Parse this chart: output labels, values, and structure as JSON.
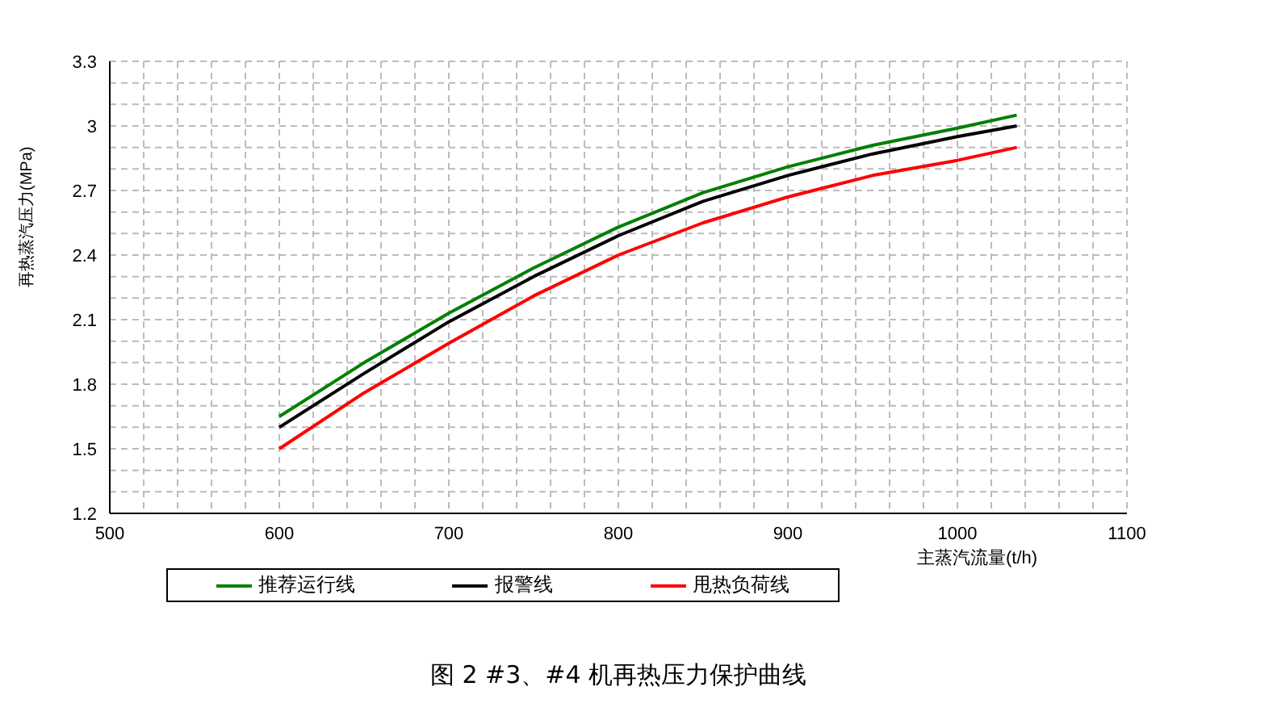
{
  "chart_data": {
    "type": "line",
    "title": "图 2   #3、#4 机再热压力保护曲线",
    "xlabel": "主蒸汽流量(t/h)",
    "ylabel": "再热蒸汽压力(MPa)",
    "x": [
      600,
      650,
      700,
      750,
      800,
      850,
      900,
      950,
      1000,
      1035
    ],
    "series": [
      {
        "name": "推荐运行线",
        "color": "#008000",
        "values": [
          1.65,
          1.9,
          2.13,
          2.34,
          2.53,
          2.69,
          2.81,
          2.91,
          2.99,
          3.05
        ]
      },
      {
        "name": "报警线",
        "color": "#000000",
        "values": [
          1.6,
          1.85,
          2.09,
          2.3,
          2.49,
          2.65,
          2.77,
          2.87,
          2.95,
          3.0
        ]
      },
      {
        "name": "甩热负荷线",
        "color": "#ff0000",
        "values": [
          1.5,
          1.76,
          1.99,
          2.21,
          2.4,
          2.55,
          2.67,
          2.77,
          2.84,
          2.9
        ]
      }
    ],
    "xlim": [
      500,
      1100
    ],
    "xticks": [
      500,
      {
        "value": 520,
        "label": null
      },
      {
        "value": 540,
        "label": null
      },
      {
        "value": 560,
        "label": null
      },
      {
        "value": 580,
        "label": null
      },
      600,
      {
        "value": 620,
        "label": null
      },
      {
        "value": 640,
        "label": null
      },
      {
        "value": 660,
        "label": null
      },
      {
        "value": 680,
        "label": null
      },
      700,
      {
        "value": 720,
        "label": null
      },
      {
        "value": 740,
        "label": null
      },
      {
        "value": 760,
        "label": null
      },
      {
        "value": 780,
        "label": null
      },
      800,
      {
        "value": 820,
        "label": null
      },
      {
        "value": 840,
        "label": null
      },
      {
        "value": 860,
        "label": null
      },
      {
        "value": 880,
        "label": null
      },
      900,
      {
        "value": 920,
        "label": null
      },
      {
        "value": 940,
        "label": null
      },
      {
        "value": 960,
        "label": null
      },
      {
        "value": 980,
        "label": null
      },
      1000,
      {
        "value": 1020,
        "label": null
      },
      {
        "value": 1040,
        "label": null
      },
      {
        "value": 1060,
        "label": null
      },
      {
        "value": 1080,
        "label": null
      },
      1100
    ],
    "ylim": [
      1.2,
      3.3
    ],
    "yticks": [
      1.2,
      {
        "value": 1.3,
        "label": null
      },
      {
        "value": 1.4,
        "label": null
      },
      1.5,
      {
        "value": 1.6,
        "label": null
      },
      {
        "value": 1.7,
        "label": null
      },
      1.8,
      {
        "value": 1.9,
        "label": null
      },
      {
        "value": 2.0,
        "label": null
      },
      2.1,
      {
        "value": 2.2,
        "label": null
      },
      {
        "value": 2.3,
        "label": null
      },
      2.4,
      {
        "value": 2.5,
        "label": null
      },
      {
        "value": 2.6,
        "label": null
      },
      2.7,
      {
        "value": 2.8,
        "label": null
      },
      {
        "value": 2.9,
        "label": null
      },
      3,
      {
        "value": 3.1,
        "label": null
      },
      {
        "value": 3.2,
        "label": null
      },
      3.3
    ],
    "grid": true,
    "legend": "bottom",
    "marker": "none",
    "line_style": "solid"
  }
}
